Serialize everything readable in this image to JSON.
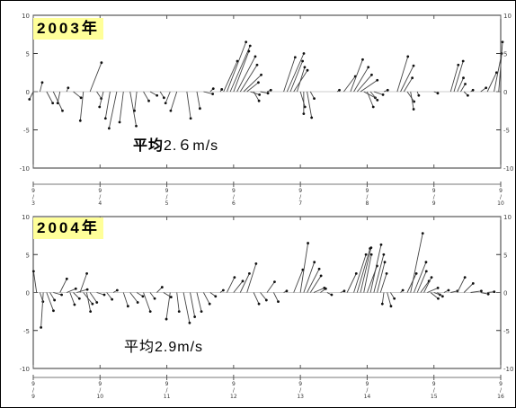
{
  "chart_data": [
    {
      "type": "stick-vector",
      "title": "2003年",
      "mean_prefix": "平均",
      "mean_value": "2.６m/s",
      "mean_prefix_bold": true,
      "ylim": [
        -10,
        10
      ],
      "yticks": [
        "10",
        "5",
        "0",
        "-5",
        "-10"
      ],
      "grid": false,
      "xtick_labels": [
        {
          "top": "9",
          "mid": "/",
          "bot": "3"
        },
        {
          "top": "9",
          "mid": "/",
          "bot": "4"
        },
        {
          "top": "9",
          "mid": "/",
          "bot": "5"
        },
        {
          "top": "9",
          "mid": "/",
          "bot": "6"
        },
        {
          "top": "9",
          "mid": "/",
          "bot": "7"
        },
        {
          "top": "9",
          "mid": "/",
          "bot": "8"
        },
        {
          "top": "9",
          "mid": "/",
          "bot": "9"
        },
        {
          "top": "9",
          "mid": "/",
          "bot": "10"
        }
      ],
      "vectors": [
        [
          3.0,
          -0.5,
          -1.0
        ],
        [
          3.1,
          0.3,
          1.2
        ],
        [
          3.2,
          0.8,
          -1.5
        ],
        [
          3.3,
          1.2,
          -2.5
        ],
        [
          3.4,
          -0.3,
          -1.5
        ],
        [
          3.5,
          0.2,
          0.5
        ],
        [
          3.6,
          1.0,
          -0.8
        ],
        [
          3.75,
          -0.4,
          -3.8
        ],
        [
          3.85,
          1.5,
          3.8
        ],
        [
          3.95,
          0.6,
          -0.9
        ],
        [
          4.05,
          -0.5,
          -2.0
        ],
        [
          4.15,
          -0.6,
          -3.5
        ],
        [
          4.25,
          -1.0,
          -4.8
        ],
        [
          4.35,
          -0.5,
          -4.0
        ],
        [
          4.45,
          0.8,
          -4.5
        ],
        [
          4.55,
          -0.3,
          -2.5
        ],
        [
          4.65,
          0.7,
          -1.2
        ],
        [
          4.75,
          0.9,
          -0.5
        ],
        [
          4.9,
          0.5,
          -0.8
        ],
        [
          5.05,
          -0.6,
          -1.5
        ],
        [
          5.15,
          -0.8,
          -2.5
        ],
        [
          5.3,
          0.5,
          -3.5
        ],
        [
          5.45,
          0.4,
          -2.2
        ],
        [
          5.55,
          1.2,
          -0.3
        ],
        [
          5.65,
          0.4,
          0.4
        ],
        [
          5.8,
          0.2,
          0.3
        ],
        [
          5.85,
          1.8,
          4.0
        ],
        [
          5.9,
          2.5,
          6.5
        ],
        [
          5.95,
          2.6,
          6.0
        ],
        [
          6.0,
          2.0,
          5.3
        ],
        [
          6.05,
          2.4,
          4.6
        ],
        [
          6.1,
          2.2,
          3.5
        ],
        [
          6.15,
          2.3,
          2.2
        ],
        [
          6.2,
          1.5,
          1.2
        ],
        [
          6.25,
          1.2,
          -0.4
        ],
        [
          6.3,
          0.7,
          -1.2
        ],
        [
          6.4,
          1.0,
          -0.2
        ],
        [
          6.5,
          0.5,
          0.2
        ],
        [
          6.75,
          1.5,
          4.5
        ],
        [
          6.8,
          2.2,
          5.0
        ],
        [
          6.85,
          1.6,
          4.0
        ],
        [
          6.9,
          1.8,
          2.8
        ],
        [
          6.95,
          1.0,
          3.2
        ],
        [
          7.0,
          0.6,
          -2.0
        ],
        [
          7.05,
          0.0,
          -2.9
        ],
        [
          7.1,
          0.6,
          -3.4
        ],
        [
          7.15,
          0.5,
          -0.9
        ],
        [
          7.55,
          0.3,
          0.2
        ],
        [
          7.65,
          1.5,
          2.0
        ],
        [
          7.75,
          1.6,
          4.2
        ],
        [
          7.8,
          1.9,
          3.2
        ],
        [
          7.85,
          1.9,
          2.2
        ],
        [
          7.9,
          2.2,
          1.5
        ],
        [
          7.95,
          1.5,
          -0.8
        ],
        [
          8.0,
          0.8,
          -2.0
        ],
        [
          8.05,
          0.9,
          -1.1
        ],
        [
          8.1,
          1.2,
          -0.4
        ],
        [
          8.25,
          0.5,
          0.2
        ],
        [
          8.45,
          1.4,
          4.6
        ],
        [
          8.5,
          1.7,
          3.4
        ],
        [
          8.55,
          1.1,
          1.8
        ],
        [
          8.6,
          0.9,
          -1.3
        ],
        [
          8.65,
          0.4,
          -2.3
        ],
        [
          8.75,
          0.2,
          -0.5
        ],
        [
          9.0,
          0.5,
          -0.2
        ],
        [
          9.25,
          1.0,
          3.5
        ],
        [
          9.3,
          1.2,
          4.0
        ],
        [
          9.35,
          0.8,
          1.8
        ],
        [
          9.4,
          0.6,
          1.0
        ],
        [
          9.45,
          0.5,
          -0.5
        ],
        [
          9.55,
          0.3,
          0.2
        ],
        [
          9.7,
          0.7,
          0.5
        ],
        [
          9.8,
          1.2,
          2.5
        ],
        [
          9.9,
          1.0,
          5.0
        ],
        [
          9.97,
          0.5,
          6.5
        ]
      ]
    },
    {
      "type": "stick-vector",
      "title": "2004年",
      "mean_prefix": "平均",
      "mean_value": "2.9m/s",
      "mean_prefix_bold": false,
      "ylim": [
        -10,
        10
      ],
      "yticks": [
        "10",
        "5",
        "0",
        "-5",
        "-10"
      ],
      "grid": false,
      "xtick_labels": [
        {
          "top": "9",
          "mid": "/",
          "bot": "9"
        },
        {
          "top": "9",
          "mid": "/",
          "bot": "10"
        },
        {
          "top": "9",
          "mid": "/",
          "bot": "11"
        },
        {
          "top": "9",
          "mid": "/",
          "bot": "12"
        },
        {
          "top": "9",
          "mid": "/",
          "bot": "13"
        },
        {
          "top": "9",
          "mid": "/",
          "bot": "14"
        },
        {
          "top": "9",
          "mid": "/",
          "bot": "15"
        },
        {
          "top": "9",
          "mid": "/",
          "bot": "16"
        }
      ],
      "vectors": [
        [
          9.05,
          -0.4,
          2.8
        ],
        [
          9.1,
          0.4,
          -1.2
        ],
        [
          9.15,
          -0.3,
          -4.6
        ],
        [
          9.2,
          0.9,
          -2.4
        ],
        [
          9.25,
          0.6,
          -1.0
        ],
        [
          9.3,
          1.1,
          -0.3
        ],
        [
          9.4,
          0.9,
          1.8
        ],
        [
          9.5,
          1.2,
          0.5
        ],
        [
          9.55,
          0.6,
          -1.6
        ],
        [
          9.6,
          0.8,
          -0.8
        ],
        [
          9.65,
          1.4,
          0.4
        ],
        [
          9.7,
          0.9,
          2.5
        ],
        [
          9.75,
          1.2,
          -1.5
        ],
        [
          9.8,
          0.5,
          -2.5
        ],
        [
          9.85,
          0.9,
          -1.3
        ],
        [
          9.95,
          1.0,
          -0.3
        ],
        [
          10.1,
          0.7,
          -0.9
        ],
        [
          10.2,
          0.5,
          0.3
        ],
        [
          10.35,
          0.6,
          -1.8
        ],
        [
          10.45,
          1.0,
          -1.3
        ],
        [
          10.55,
          0.8,
          -0.5
        ],
        [
          10.65,
          0.9,
          -2.5
        ],
        [
          10.75,
          0.6,
          -0.8
        ],
        [
          10.85,
          0.7,
          0.7
        ],
        [
          10.95,
          1.0,
          -0.6
        ],
        [
          11.05,
          -0.5,
          -3.5
        ],
        [
          11.15,
          0.3,
          -2.5
        ],
        [
          11.25,
          0.8,
          -4.0
        ],
        [
          11.35,
          0.6,
          -3.2
        ],
        [
          11.45,
          0.6,
          -2.5
        ],
        [
          11.55,
          0.8,
          -1.5
        ],
        [
          11.65,
          0.7,
          -0.5
        ],
        [
          11.8,
          0.4,
          0.3
        ],
        [
          11.9,
          1.0,
          2.0
        ],
        [
          12.0,
          1.2,
          1.5
        ],
        [
          12.1,
          1.2,
          2.5
        ],
        [
          12.2,
          1.2,
          3.8
        ],
        [
          12.3,
          0.7,
          -1.5
        ],
        [
          12.4,
          0.8,
          -1.0
        ],
        [
          12.5,
          1.0,
          1.4
        ],
        [
          12.6,
          0.6,
          -1.2
        ],
        [
          12.75,
          0.4,
          0.2
        ],
        [
          12.9,
          1.2,
          3.0
        ],
        [
          13.0,
          1.0,
          6.5
        ],
        [
          13.05,
          1.4,
          4.0
        ],
        [
          13.1,
          1.6,
          3.1
        ],
        [
          13.15,
          1.4,
          2.2
        ],
        [
          13.2,
          1.4,
          0.6
        ],
        [
          13.3,
          0.7,
          0.5
        ],
        [
          13.4,
          0.6,
          -0.3
        ],
        [
          13.6,
          0.5,
          0.2
        ],
        [
          13.7,
          1.2,
          2.5
        ],
        [
          13.8,
          1.6,
          5.0
        ],
        [
          13.85,
          1.7,
          5.8
        ],
        [
          13.9,
          1.4,
          5.9
        ],
        [
          13.95,
          1.0,
          5.0
        ],
        [
          14.0,
          1.3,
          3.5
        ],
        [
          14.05,
          1.4,
          6.3
        ],
        [
          14.1,
          1.3,
          5.0
        ],
        [
          14.15,
          1.0,
          4.0
        ],
        [
          14.2,
          0.8,
          2.5
        ],
        [
          14.25,
          -0.2,
          -1.5
        ],
        [
          14.3,
          0.5,
          -1.8
        ],
        [
          14.35,
          0.5,
          -0.8
        ],
        [
          14.5,
          0.3,
          0.3
        ],
        [
          14.6,
          1.2,
          2.5
        ],
        [
          14.65,
          1.6,
          7.8
        ],
        [
          14.7,
          1.6,
          4.0
        ],
        [
          14.75,
          1.2,
          2.8
        ],
        [
          14.8,
          1.1,
          1.5
        ],
        [
          14.85,
          1.0,
          2.0
        ],
        [
          14.9,
          1.4,
          0.6
        ],
        [
          14.95,
          1.0,
          -0.8
        ],
        [
          15.0,
          0.8,
          -0.3
        ],
        [
          15.05,
          0.7,
          -0.5
        ],
        [
          15.15,
          0.6,
          0.3
        ],
        [
          15.25,
          0.9,
          0.2
        ],
        [
          15.35,
          1.0,
          2.0
        ],
        [
          15.45,
          1.2,
          1.2
        ],
        [
          15.55,
          1.4,
          0.2
        ],
        [
          15.7,
          1.0,
          -0.2
        ],
        [
          15.8,
          0.9,
          0.1
        ]
      ]
    }
  ]
}
